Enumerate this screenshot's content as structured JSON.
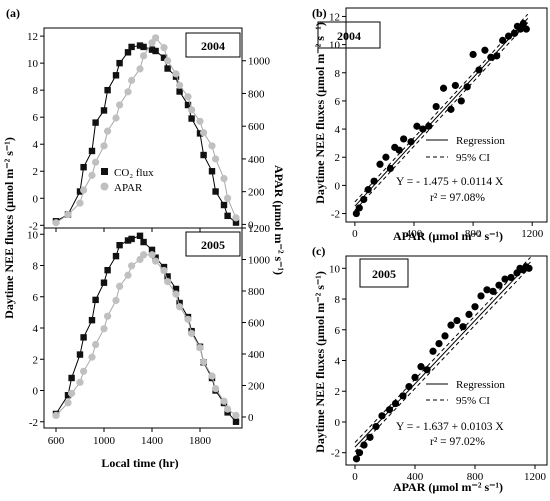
{
  "panel_labels": {
    "a": "(a)",
    "b": "(b)",
    "c": "(c)"
  },
  "colors": {
    "co2": "#111111",
    "apar": "#c0c0c0",
    "axis": "#000000"
  },
  "panel_a": {
    "ylabel_left": "Daytime NEE fluxes (μmol m⁻² s⁻¹)",
    "ylabel_right": "APAR (μmol m⁻² s⁻¹)",
    "xlabel": "Local time (hr)",
    "legend_co2": "CO₂ flux",
    "legend_apar": "APAR",
    "year_top": "2004",
    "year_bottom": "2005"
  },
  "panel_b": {
    "year": "2004",
    "xlabel": "APAR (μmol m⁻² s⁻¹)",
    "ylabel": "Daytime NEE fluxes (μmol m⁻² s⁻¹)",
    "legend_regression": "Regression",
    "legend_ci": "95% CI",
    "equation": "Y = - 1.475 + 0.0114 X",
    "r2": "r² = 97.08%"
  },
  "panel_c": {
    "year": "2005",
    "xlabel": "APAR (μmol m⁻² s⁻¹)",
    "ylabel": "Daytime NEE fluxes (μmol m⁻² s⁻¹)",
    "legend_regression": "Regression",
    "legend_ci": "95% CI",
    "equation": "Y = - 1.637 + 0.0103 X",
    "r2": "r² = 97.02%"
  },
  "chart_data": [
    {
      "id": "a-2004",
      "type": "scatter",
      "year": "2004",
      "xlim": [
        500,
        2150
      ],
      "x_ticks": [
        600,
        1000,
        1400,
        1800
      ],
      "ylim_left": [
        -2.2,
        12.6
      ],
      "y_ticks_left": [
        -2,
        0,
        2,
        4,
        6,
        8,
        10,
        12
      ],
      "ylim_right": [
        -22,
        1200
      ],
      "y_ticks_right": [
        0,
        200,
        400,
        600,
        800,
        1000
      ],
      "series": [
        {
          "name": "CO₂ flux",
          "axis": "left",
          "marker": "square",
          "x": [
            600,
            700,
            800,
            830,
            900,
            930,
            1000,
            1030,
            1100,
            1130,
            1200,
            1230,
            1300,
            1330,
            1400,
            1430,
            1500,
            1530,
            1600,
            1630,
            1700,
            1730,
            1800,
            1830,
            1900,
            1930,
            2000,
            2030,
            2100
          ],
          "y": [
            -1.7,
            -1.2,
            0.5,
            2.3,
            3.5,
            5.6,
            6.5,
            8.0,
            9.1,
            10.0,
            10.8,
            11.2,
            11.3,
            11.2,
            11.0,
            10.9,
            10.4,
            9.6,
            9.0,
            7.9,
            6.9,
            5.9,
            4.8,
            3.2,
            2.0,
            0.5,
            -0.5,
            -1.3,
            -1.8
          ]
        },
        {
          "name": "APAR",
          "axis": "right",
          "marker": "circle",
          "x": [
            600,
            700,
            800,
            830,
            900,
            930,
            1000,
            1030,
            1100,
            1130,
            1200,
            1230,
            1300,
            1330,
            1400,
            1430,
            1500,
            1530,
            1600,
            1630,
            1700,
            1730,
            1800,
            1830,
            1900,
            1930,
            2000,
            2030,
            2100
          ],
          "y": [
            10,
            60,
            130,
            210,
            300,
            380,
            480,
            570,
            650,
            730,
            810,
            880,
            950,
            1030,
            1110,
            1140,
            1080,
            1000,
            920,
            850,
            780,
            700,
            630,
            560,
            480,
            400,
            280,
            160,
            40
          ]
        }
      ]
    },
    {
      "id": "a-2005",
      "type": "scatter",
      "year": "2005",
      "xlim": [
        500,
        2150
      ],
      "x_ticks": [
        600,
        1000,
        1400,
        1800
      ],
      "ylim_left": [
        -2.4,
        10.4
      ],
      "y_ticks_left": [
        -2,
        0,
        2,
        4,
        6,
        8,
        10
      ],
      "ylim_right": [
        -70,
        1200
      ],
      "y_ticks_right": [
        0,
        200,
        400,
        600,
        800,
        1000,
        1200
      ],
      "series": [
        {
          "name": "CO₂ flux",
          "axis": "left",
          "marker": "square",
          "x": [
            600,
            700,
            730,
            800,
            830,
            900,
            930,
            1000,
            1030,
            1100,
            1130,
            1200,
            1230,
            1300,
            1330,
            1400,
            1430,
            1500,
            1530,
            1600,
            1630,
            1700,
            1730,
            1800,
            1830,
            1900,
            1930,
            2000,
            2030,
            2100
          ],
          "y": [
            -1.5,
            -0.3,
            0.8,
            2.3,
            3.4,
            4.5,
            5.8,
            6.9,
            7.7,
            8.6,
            9.3,
            9.6,
            9.7,
            9.9,
            9.5,
            9.0,
            8.5,
            7.9,
            7.3,
            6.5,
            5.6,
            4.7,
            3.8,
            2.8,
            1.8,
            0.8,
            0.0,
            -0.8,
            -1.4,
            -2.0
          ]
        },
        {
          "name": "APAR",
          "axis": "right",
          "marker": "circle",
          "x": [
            600,
            700,
            730,
            800,
            830,
            900,
            930,
            1000,
            1030,
            1100,
            1130,
            1200,
            1230,
            1300,
            1330,
            1400,
            1430,
            1500,
            1530,
            1600,
            1630,
            1700,
            1730,
            1800,
            1830,
            1900,
            1930,
            2000,
            2030,
            2100
          ],
          "y": [
            10,
            90,
            150,
            220,
            290,
            380,
            460,
            560,
            640,
            740,
            830,
            900,
            960,
            1000,
            1030,
            1030,
            990,
            930,
            860,
            780,
            700,
            620,
            530,
            440,
            350,
            260,
            180,
            100,
            50,
            10
          ]
        }
      ]
    },
    {
      "id": "b",
      "type": "scatter",
      "year": "2004",
      "xlim": [
        -60,
        1300
      ],
      "x_ticks": [
        0,
        400,
        800,
        1200
      ],
      "ylim": [
        -2.6,
        12.6
      ],
      "y_ticks": [
        -2,
        0,
        2,
        4,
        6,
        8,
        10,
        12
      ],
      "regression": {
        "intercept": -1.475,
        "slope": 0.0114,
        "ci_offset": 0.3
      },
      "points": {
        "x": [
          10,
          30,
          60,
          90,
          130,
          170,
          210,
          240,
          270,
          300,
          330,
          380,
          420,
          460,
          500,
          550,
          600,
          650,
          680,
          720,
          760,
          800,
          840,
          880,
          920,
          960,
          1000,
          1040,
          1080,
          1100,
          1120,
          1140,
          1160
        ],
        "y": [
          -2.0,
          -1.6,
          -1.0,
          -0.3,
          0.3,
          1.5,
          2.0,
          1.2,
          2.7,
          2.5,
          3.3,
          3.1,
          4.2,
          4.0,
          4.2,
          5.6,
          6.9,
          5.4,
          7.1,
          6.0,
          7.0,
          9.3,
          8.2,
          9.6,
          9.1,
          9.2,
          10.3,
          10.6,
          10.8,
          11.3,
          11.1,
          11.5,
          11.1
        ]
      }
    },
    {
      "id": "c",
      "type": "scatter",
      "year": "2005",
      "xlim": [
        -60,
        1280
      ],
      "x_ticks": [
        0,
        400,
        800,
        1200
      ],
      "ylim": [
        -2.8,
        10.8
      ],
      "y_ticks": [
        -2,
        0,
        2,
        4,
        6,
        8,
        10
      ],
      "regression": {
        "intercept": -1.637,
        "slope": 0.0103,
        "ci_offset": 0.3
      },
      "points": {
        "x": [
          10,
          30,
          60,
          100,
          140,
          180,
          230,
          270,
          320,
          360,
          400,
          440,
          480,
          520,
          560,
          600,
          640,
          680,
          720,
          760,
          800,
          840,
          880,
          920,
          960,
          1000,
          1040,
          1080,
          1100,
          1120,
          1140,
          1160
        ],
        "y": [
          -2.4,
          -2.0,
          -1.5,
          -1.0,
          -0.3,
          0.4,
          0.8,
          1.2,
          1.7,
          2.3,
          2.9,
          3.6,
          3.4,
          4.6,
          5.1,
          5.6,
          6.3,
          6.6,
          6.2,
          7.0,
          7.5,
          8.2,
          8.6,
          8.5,
          8.9,
          9.3,
          9.4,
          9.7,
          10.0,
          9.9,
          10.1,
          10.0
        ]
      }
    }
  ]
}
